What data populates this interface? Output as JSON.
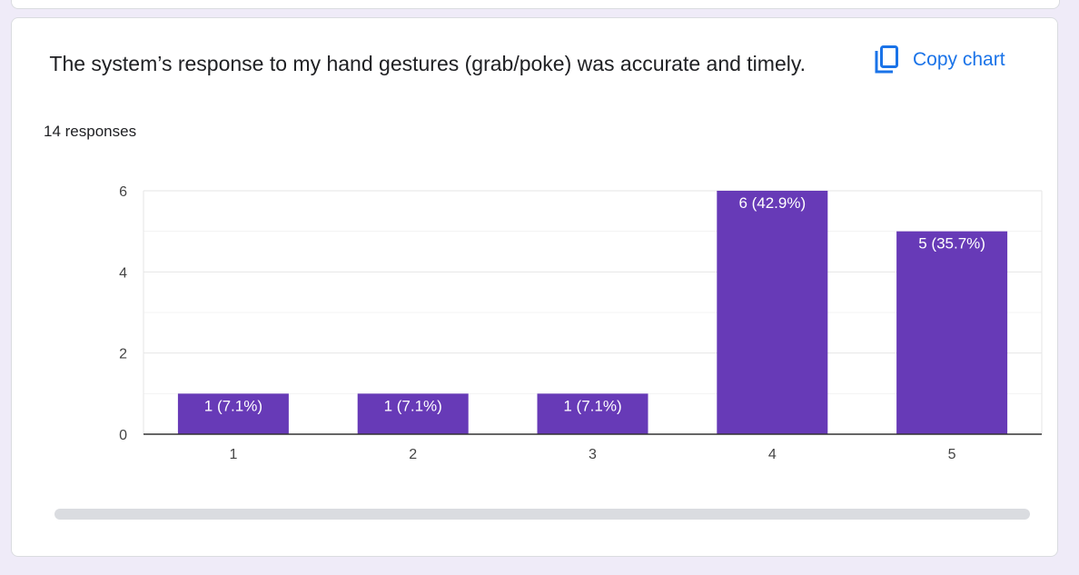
{
  "question": {
    "title": " The system’s response to my hand gestures (grab/poke) was accurate and timely.",
    "responses_count": "14 responses"
  },
  "toolbar": {
    "copy_label": "Copy chart",
    "copy_icon": "copy-icon"
  },
  "colors": {
    "bar": "#673ab7",
    "accent": "#1a73e8",
    "page_background": "#efebf8"
  },
  "chart_data": {
    "type": "bar",
    "categories": [
      "1",
      "2",
      "3",
      "4",
      "5"
    ],
    "values": [
      1,
      1,
      1,
      6,
      5
    ],
    "data_labels": [
      "1 (7.1%)",
      "1 (7.1%)",
      "1 (7.1%)",
      "6 (42.9%)",
      "5 (35.7%)"
    ],
    "y_ticks": [
      "0",
      "2",
      "4",
      "6"
    ],
    "ylim": [
      0,
      6
    ],
    "grid": true,
    "title": "",
    "xlabel": "",
    "ylabel": ""
  }
}
